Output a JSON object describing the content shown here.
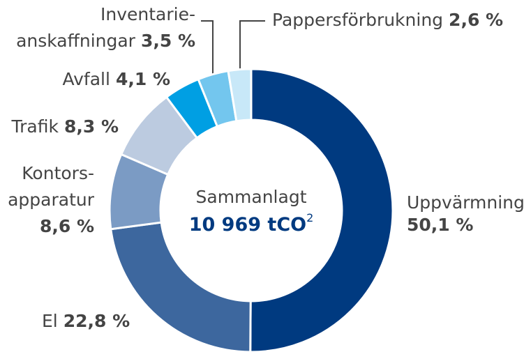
{
  "chart_data": {
    "type": "donut",
    "categories": [
      [
        "Uppvärmning"
      ],
      [
        "El"
      ],
      [
        "Kontors-",
        "apparatur"
      ],
      [
        "Trafik"
      ],
      [
        "Avfall"
      ],
      [
        "Inventarie-",
        "anskaffningar"
      ],
      [
        "Pappersförbrukning"
      ]
    ],
    "values": [
      50.1,
      22.8,
      8.6,
      8.3,
      4.1,
      3.5,
      2.6
    ],
    "value_labels": [
      "50,1 %",
      "22,8 %",
      "8,6 %",
      "8,3 %",
      "4,1 %",
      "3,5 %",
      "2,6 %"
    ],
    "colors": [
      "#003a80",
      "#3d679e",
      "#7b9bc4",
      "#bccbe0",
      "#009fe3",
      "#73c6ee",
      "#c8e8f8"
    ],
    "center_label": "Sammanlagt",
    "total": {
      "text": "10 969 tCO",
      "sup": "2"
    }
  }
}
